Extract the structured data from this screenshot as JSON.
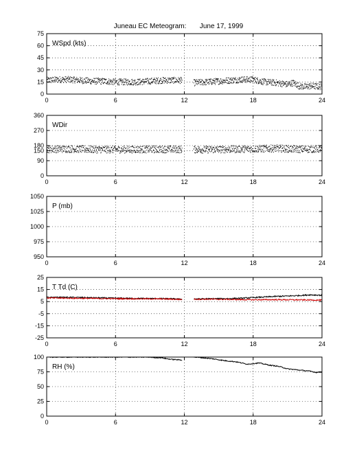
{
  "title": "Juneau EC Meteogram:       June 17, 1999",
  "chart_data": [
    {
      "type": "scatter",
      "label": "WSpd (kts)",
      "ylim": [
        0,
        75
      ],
      "yticks": [
        0,
        15,
        30,
        45,
        60,
        75
      ],
      "xlim": [
        0,
        24
      ],
      "xticks": [
        0,
        6,
        12,
        18,
        24
      ],
      "grid": true,
      "series": [
        {
          "color": "#000000",
          "gap": [
            11.8,
            12.8
          ],
          "x": [
            0,
            1,
            2,
            3,
            4,
            5,
            6,
            7,
            8,
            9,
            10,
            11,
            11.8,
            12.8,
            14,
            15,
            16,
            17,
            18,
            19,
            20,
            21,
            21.5,
            22,
            22.5,
            23,
            24
          ],
          "y": [
            17,
            18,
            18,
            17,
            16,
            16,
            15,
            15,
            15,
            16,
            17,
            17,
            17,
            14,
            15,
            16,
            17,
            18,
            18,
            15,
            14,
            12,
            14,
            10,
            9,
            10,
            9
          ]
        }
      ]
    },
    {
      "type": "scatter",
      "label": "WDir",
      "ylim": [
        0,
        360
      ],
      "yticks": [
        0,
        90,
        150,
        180,
        270,
        360
      ],
      "xlim": [
        0,
        24
      ],
      "xticks": [
        0,
        6,
        12,
        18,
        24
      ],
      "grid": true,
      "series": [
        {
          "color": "#000000",
          "gap": [
            11.8,
            12.8
          ],
          "x": [
            0,
            2,
            4,
            6,
            8,
            10,
            11.8,
            12.8,
            14,
            16,
            18,
            20,
            22,
            24
          ],
          "y": [
            158,
            160,
            157,
            156,
            157,
            158,
            157,
            157,
            156,
            158,
            160,
            163,
            158,
            160
          ]
        }
      ]
    },
    {
      "type": "scatter",
      "label": "P (mb)",
      "ylim": [
        950,
        1050
      ],
      "yticks": [
        950,
        975,
        1000,
        1025,
        1050
      ],
      "xlim": [
        0,
        24
      ],
      "xticks": [
        0,
        6,
        12,
        18,
        24
      ],
      "grid": true,
      "series": []
    },
    {
      "type": "line",
      "label": "T Td (C)",
      "ylim": [
        -25,
        25
      ],
      "yticks": [
        -25,
        -15,
        -5,
        5,
        15,
        25
      ],
      "xlim": [
        0,
        24
      ],
      "xticks": [
        0,
        6,
        12,
        18,
        24
      ],
      "grid": true,
      "series": [
        {
          "color": "#000000",
          "gap": [
            11.8,
            12.8
          ],
          "x": [
            0,
            2,
            4,
            6,
            8,
            10,
            11,
            11.8,
            12.8,
            14,
            16,
            17,
            18,
            19,
            20,
            21,
            22,
            23,
            24
          ],
          "y": [
            8.5,
            8.5,
            8.2,
            7.8,
            7.6,
            7.5,
            7.3,
            7.0,
            7.2,
            7.3,
            7.5,
            7.8,
            8.3,
            8.8,
            9.3,
            9.6,
            10.0,
            10.6,
            10.2
          ]
        },
        {
          "color": "#cc0000",
          "gap": [
            11.8,
            12.8
          ],
          "x": [
            0,
            2,
            4,
            6,
            8,
            10,
            11.8,
            12.8,
            14,
            16,
            18,
            20,
            22,
            24
          ],
          "y": [
            8.0,
            7.8,
            7.6,
            7.4,
            7.3,
            7.2,
            6.8,
            7.0,
            7.0,
            6.8,
            6.5,
            6.6,
            6.4,
            6.2
          ]
        }
      ]
    },
    {
      "type": "line",
      "label": "RH (%)",
      "ylim": [
        0,
        100
      ],
      "yticks": [
        0,
        25,
        50,
        75,
        100
      ],
      "xlim": [
        0,
        24
      ],
      "xticks": [
        0,
        6,
        12,
        18,
        24
      ],
      "grid": true,
      "series": [
        {
          "color": "#000000",
          "gap": [
            11.8,
            12.8
          ],
          "x": [
            0,
            6,
            8.9,
            9.5,
            10,
            10.5,
            11,
            11.8,
            12.8,
            13.5,
            14.5,
            15.5,
            16.5,
            17,
            17.5,
            18,
            18.5,
            19,
            19.5,
            20,
            20.5,
            21,
            21.5,
            22,
            22.5,
            23,
            23.5,
            24
          ],
          "y": [
            100,
            100,
            100,
            99,
            99,
            97,
            96,
            95,
            100,
            99,
            97,
            94,
            92,
            90,
            88,
            89,
            90,
            88,
            86,
            85,
            83,
            80,
            79,
            78,
            77,
            76,
            74,
            75
          ]
        }
      ]
    }
  ]
}
